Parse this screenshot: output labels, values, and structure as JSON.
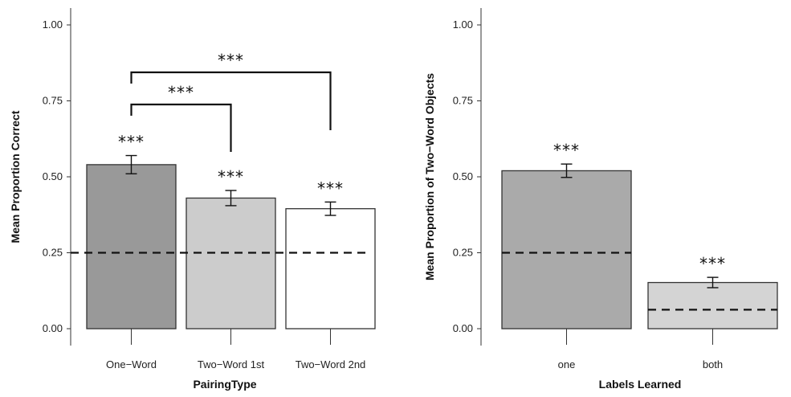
{
  "chart_data": [
    {
      "type": "bar",
      "xlabel": "PairingType",
      "ylabel": "Mean Proportion Correct",
      "ylim": [
        0,
        1
      ],
      "yticks": [
        "0.00",
        "0.25",
        "0.50",
        "0.75",
        "1.00"
      ],
      "categories": [
        "One−Word",
        "Two−Word 1st",
        "Two−Word 2nd"
      ],
      "values": [
        0.54,
        0.43,
        0.395
      ],
      "errors": [
        0.03,
        0.025,
        0.022
      ],
      "colors": [
        "#999999",
        "#cccccc",
        "#ffffff"
      ],
      "bar_labels": [
        "***",
        "***",
        "***"
      ],
      "chance_line": 0.25,
      "comparisons": [
        {
          "from": 0,
          "to": 1,
          "label": "***"
        },
        {
          "from": 0,
          "to": 2,
          "label": "***"
        }
      ]
    },
    {
      "type": "bar",
      "xlabel": "Labels Learned",
      "ylabel": "Mean Proportion of Two−Word Objects",
      "ylim": [
        0,
        1
      ],
      "yticks": [
        "0.00",
        "0.25",
        "0.50",
        "0.75",
        "1.00"
      ],
      "categories": [
        "one",
        "both"
      ],
      "values": [
        0.52,
        0.152
      ],
      "errors": [
        0.022,
        0.017
      ],
      "colors": [
        "#aaaaaa",
        "#d4d4d4"
      ],
      "bar_labels": [
        "***",
        "***"
      ],
      "chance_lines": [
        0.25,
        0.0625
      ]
    }
  ]
}
